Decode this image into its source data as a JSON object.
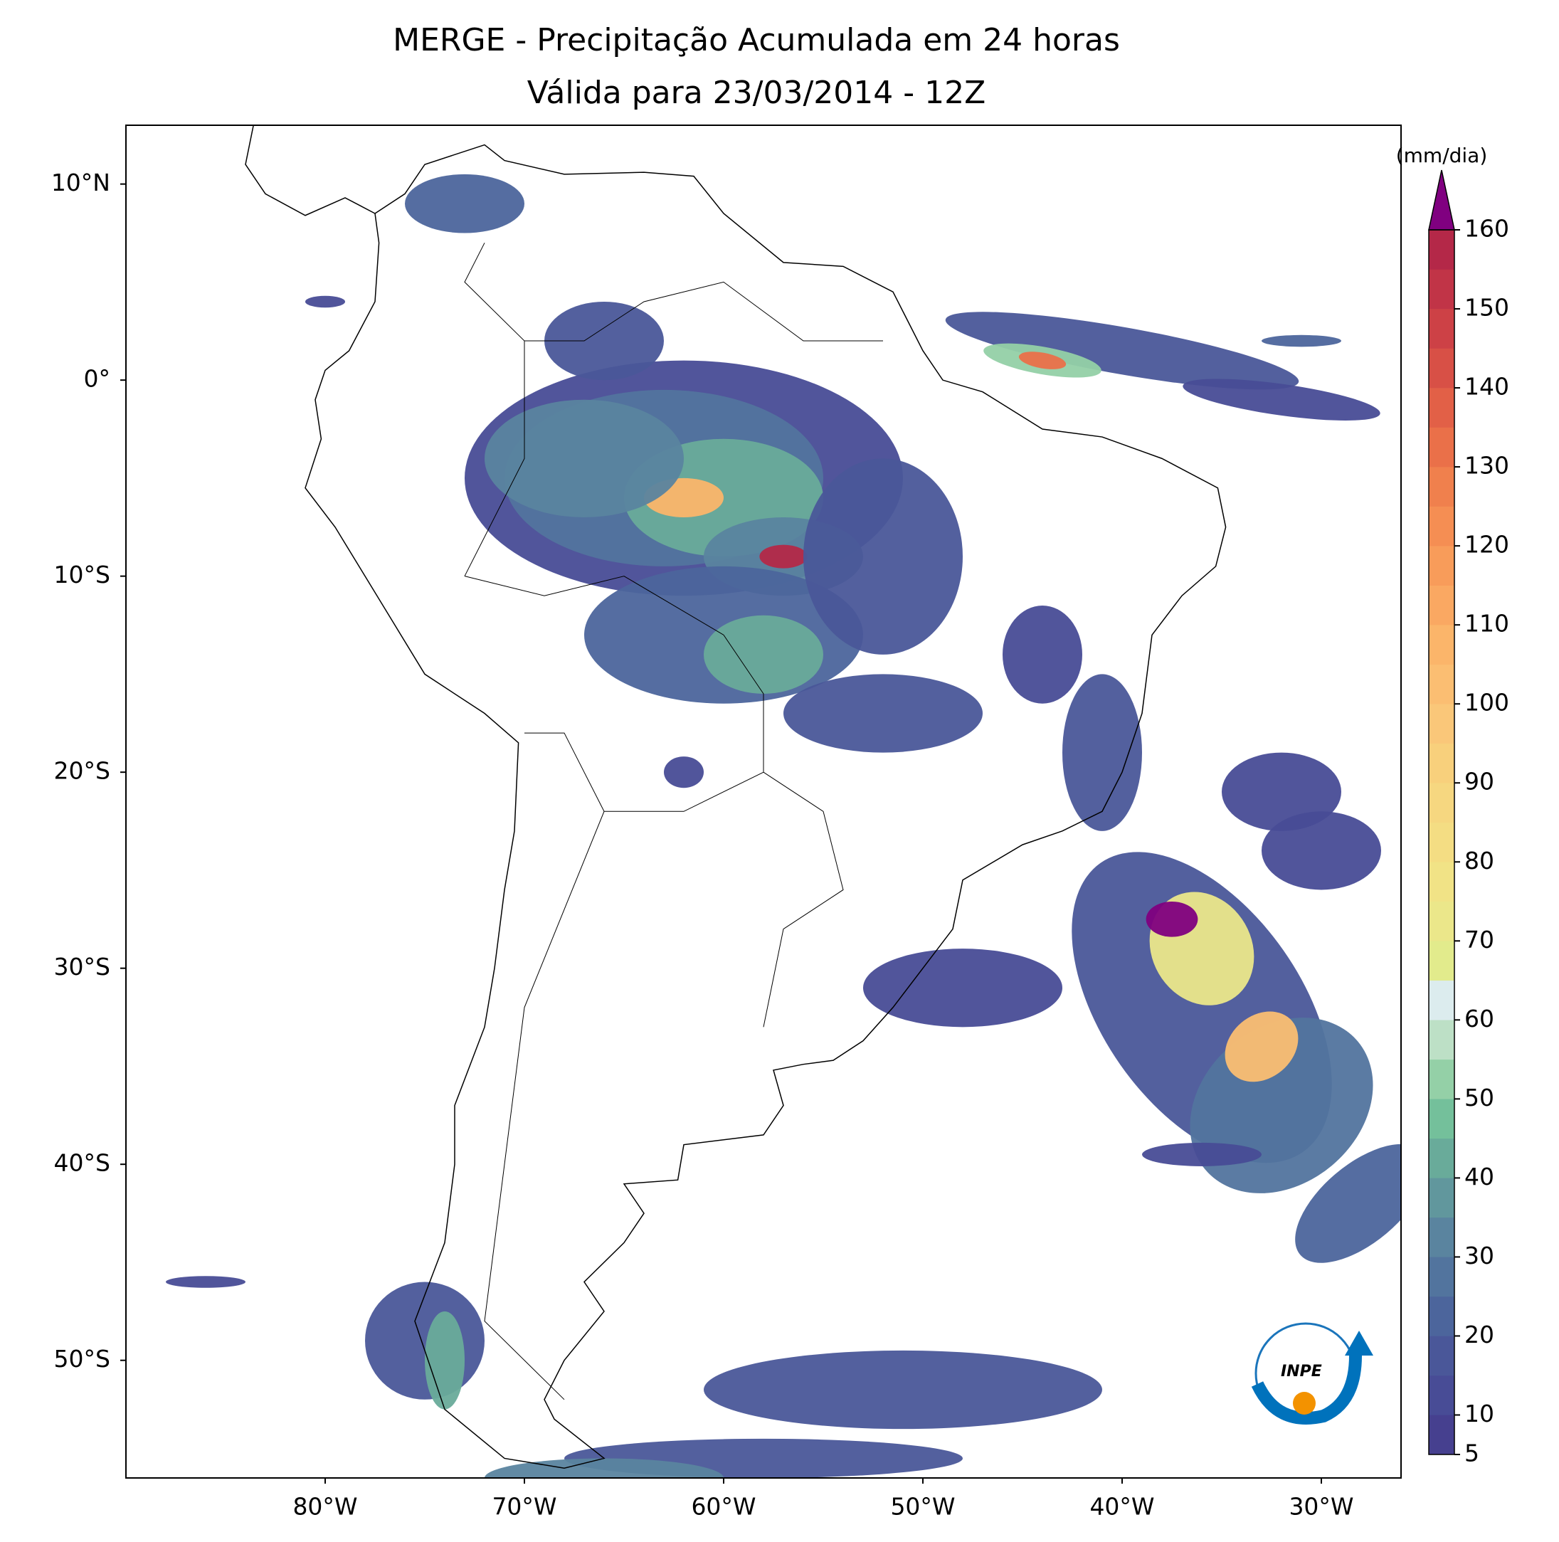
{
  "chart_data": {
    "type": "map",
    "title": "MERGE - Precipitação Acumulada em 24 horas",
    "subtitle": "Válida para 23/03/2014 - 12Z",
    "xlim": [
      -90,
      -26
    ],
    "ylim": [
      -56,
      13
    ],
    "xticks": [
      {
        "value": -80,
        "label": "80°W"
      },
      {
        "value": -70,
        "label": "70°W"
      },
      {
        "value": -60,
        "label": "60°W"
      },
      {
        "value": -50,
        "label": "50°W"
      },
      {
        "value": -40,
        "label": "40°W"
      },
      {
        "value": -30,
        "label": "30°W"
      }
    ],
    "yticks": [
      {
        "value": 10,
        "label": "10°N"
      },
      {
        "value": 0,
        "label": "0°"
      },
      {
        "value": -10,
        "label": "10°S"
      },
      {
        "value": -20,
        "label": "20°S"
      },
      {
        "value": -30,
        "label": "30°S"
      },
      {
        "value": -40,
        "label": "40°S"
      },
      {
        "value": -50,
        "label": "50°S"
      }
    ],
    "colorbar": {
      "label": "(mm/dia)",
      "lim": [
        5,
        160
      ],
      "ticks": [
        5,
        10,
        20,
        30,
        40,
        50,
        60,
        70,
        80,
        90,
        100,
        110,
        120,
        130,
        140,
        150,
        160
      ],
      "levels": [
        5,
        10,
        15,
        20,
        25,
        30,
        35,
        40,
        45,
        50,
        55,
        60,
        65,
        70,
        75,
        80,
        85,
        90,
        95,
        100,
        105,
        110,
        115,
        120,
        125,
        130,
        135,
        140,
        145,
        150,
        155,
        160
      ],
      "colors": [
        "#46408f",
        "#484c96",
        "#4a5799",
        "#4c659c",
        "#52749e",
        "#5a849f",
        "#61979d",
        "#69ab9a",
        "#74c09b",
        "#94d0a7",
        "#bde0c6",
        "#dcecee",
        "#e2eb8c",
        "#ebe78a",
        "#f1e386",
        "#f4dd83",
        "#f6d780",
        "#f8d07c",
        "#fac779",
        "#fbbe72",
        "#fbb56a",
        "#faa862",
        "#f89c5a",
        "#f58e53",
        "#f0804d",
        "#ea7049",
        "#e26047",
        "#d85046",
        "#cd4146",
        "#c13447",
        "#b42848"
      ],
      "extend_color": "#800080"
    },
    "logo": "INPE"
  }
}
